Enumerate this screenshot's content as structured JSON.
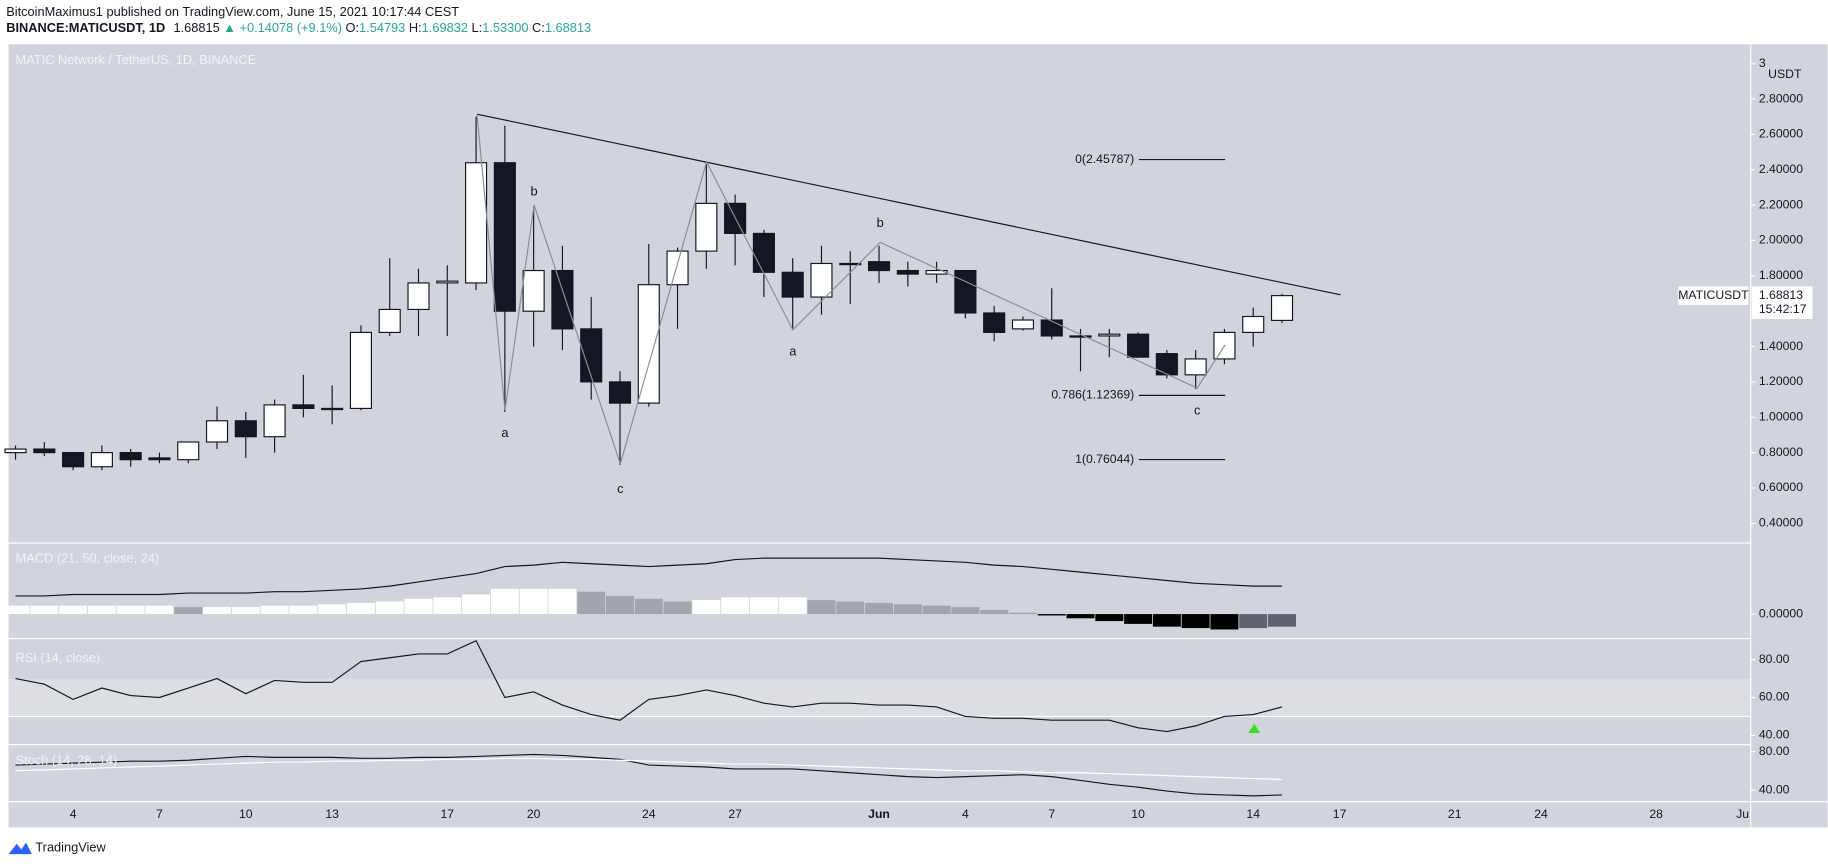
{
  "header": {
    "line1": "BitcoinMaximus1 published on TradingView.com, June 15, 2021 10:17:44 CEST",
    "symbol": "BINANCE:MATICUSDT, 1D",
    "last": "1.68815",
    "change": "+0.14078 (+9.1%)",
    "ohlc": [
      {
        "label": "O:",
        "value": "1.54793"
      },
      {
        "label": "H:",
        "value": "1.69832"
      },
      {
        "label": "L:",
        "value": "1.53300"
      },
      {
        "label": "C:",
        "value": "1.68813"
      }
    ]
  },
  "footer": {
    "brand": "TradingView"
  },
  "chart_data": [
    {
      "type": "candlestick",
      "title": "MATIC Network / TetherUS, 1D, BINANCE",
      "categories": [
        null,
        null,
        "4",
        null,
        null,
        "7",
        null,
        null,
        "10",
        null,
        null,
        "13",
        null,
        null,
        null,
        "17",
        null,
        null,
        "20",
        null,
        null,
        null,
        "24",
        null,
        null,
        "27",
        null,
        null,
        null,
        null,
        "Jun",
        null,
        null,
        "4",
        null,
        null,
        "7",
        null,
        null,
        "10",
        null,
        null,
        null,
        "14",
        null,
        null,
        "17",
        null,
        null,
        null,
        "21",
        null,
        null,
        "24",
        null,
        null,
        null,
        "28",
        null,
        null,
        "Ju"
      ],
      "series": {
        "open": [
          0.8,
          0.82,
          0.8,
          0.72,
          0.8,
          0.77,
          0.76,
          0.86,
          0.98,
          0.89,
          1.07,
          1.05,
          1.05,
          1.48,
          1.61,
          1.76,
          1.76,
          2.44,
          1.6,
          1.83,
          1.5,
          1.2,
          1.08,
          1.75,
          1.94,
          2.21,
          2.04,
          1.82,
          1.68,
          1.87,
          1.88,
          1.83,
          1.81,
          1.83,
          1.59,
          1.5,
          1.55,
          1.46,
          1.46,
          1.47,
          1.36,
          1.24,
          1.33,
          1.48,
          1.54793,
          null,
          null,
          null,
          null,
          null,
          null,
          null,
          null,
          null,
          null,
          null,
          null,
          null,
          null,
          null,
          null
        ],
        "high": [
          0.84,
          0.86,
          0.8,
          0.84,
          0.82,
          0.8,
          0.86,
          1.06,
          1.03,
          1.1,
          1.24,
          1.18,
          1.52,
          1.9,
          1.84,
          1.86,
          2.7,
          2.65,
          2.19,
          1.97,
          1.68,
          1.26,
          1.98,
          1.96,
          2.44,
          2.26,
          2.06,
          1.9,
          1.97,
          1.94,
          1.97,
          1.88,
          1.88,
          1.83,
          1.63,
          1.57,
          1.73,
          1.5,
          1.5,
          1.48,
          1.38,
          1.38,
          1.5,
          1.62,
          1.69832,
          null,
          null,
          null,
          null,
          null,
          null,
          null,
          null,
          null,
          null,
          null,
          null,
          null,
          null,
          null,
          null
        ],
        "low": [
          0.76,
          0.78,
          0.7,
          0.7,
          0.72,
          0.74,
          0.74,
          0.82,
          0.77,
          0.8,
          1.0,
          0.96,
          1.04,
          1.46,
          1.46,
          1.46,
          1.72,
          1.03,
          1.4,
          1.38,
          1.1,
          0.73,
          1.06,
          1.5,
          1.84,
          1.86,
          1.68,
          1.5,
          1.58,
          1.64,
          1.76,
          1.74,
          1.76,
          1.56,
          1.43,
          1.49,
          1.44,
          1.26,
          1.34,
          1.34,
          1.22,
          1.16,
          1.3,
          1.4,
          1.533,
          null,
          null,
          null,
          null,
          null,
          null,
          null,
          null,
          null,
          null,
          null,
          null,
          null,
          null,
          null,
          null
        ],
        "close": [
          0.82,
          0.8,
          0.72,
          0.8,
          0.76,
          0.76,
          0.86,
          0.98,
          0.89,
          1.07,
          1.05,
          1.05,
          1.48,
          1.61,
          1.76,
          1.77,
          2.44,
          1.6,
          1.83,
          1.5,
          1.2,
          1.08,
          1.75,
          1.94,
          2.21,
          2.04,
          1.82,
          1.68,
          1.87,
          1.87,
          1.83,
          1.81,
          1.83,
          1.59,
          1.48,
          1.55,
          1.46,
          1.46,
          1.47,
          1.34,
          1.24,
          1.33,
          1.48,
          1.57,
          1.68813,
          null,
          null,
          null,
          null,
          null,
          null,
          null,
          null,
          null,
          null,
          null,
          null,
          null,
          null,
          null,
          null
        ]
      },
      "up_color": "#ffffff",
      "down_color": "#131722",
      "ylim": [
        0.295,
        3.11
      ],
      "y_unit": "USDT",
      "yticks": [
        3,
        {
          "value": 2.8,
          "label": "2.80000"
        },
        {
          "value": 2.6,
          "label": "2.60000"
        },
        {
          "value": 2.4,
          "label": "2.40000"
        },
        {
          "value": 2.2,
          "label": "2.20000"
        },
        {
          "value": 2.0,
          "label": "2.00000"
        },
        {
          "value": 1.8,
          "label": "1.80000"
        },
        {
          "value": 1.4,
          "label": "1.40000"
        },
        {
          "value": 1.2,
          "label": "1.20000"
        },
        {
          "value": 1.0,
          "label": "1.00000"
        },
        {
          "value": 0.8,
          "label": "0.80000"
        },
        {
          "value": 0.6,
          "label": "0.60000"
        },
        {
          "value": 0.4,
          "label": "0.40000"
        }
      ],
      "fib_levels": [
        {
          "label": "0(2.45787)",
          "value": 2.45787
        },
        {
          "label": "0.786(1.12369)",
          "value": 1.12369
        },
        {
          "label": "1(0.76044)",
          "value": 0.76044
        }
      ],
      "wave_labels": [
        "b",
        "a",
        "c",
        "a",
        "b",
        "c"
      ],
      "last_price": {
        "symbol": "MATICUSDT",
        "value": 1.68813,
        "countdown": "15:42:17"
      }
    },
    {
      "type": "macd",
      "title": "MACD (21, 50, close, 24)",
      "series": [
        {
          "name": "MACD",
          "color": "#131722",
          "values": [
            0.013,
            0.013,
            0.014,
            0.014,
            0.014,
            0.014,
            0.015,
            0.015,
            0.015,
            0.016,
            0.016,
            0.017,
            0.018,
            0.02,
            0.023,
            0.026,
            0.029,
            0.034,
            0.035,
            0.037,
            0.036,
            0.035,
            0.034,
            0.035,
            0.036,
            0.039,
            0.04,
            0.04,
            0.04,
            0.04,
            0.04,
            0.039,
            0.038,
            0.037,
            0.035,
            0.034,
            0.032,
            0.03,
            0.028,
            0.026,
            0.024,
            0.022,
            0.021,
            0.02,
            0.02,
            null,
            null,
            null,
            null,
            null,
            null,
            null,
            null,
            null,
            null,
            null,
            null,
            null,
            null,
            null,
            null
          ]
        }
      ],
      "histogram": [
        0.006,
        0.006,
        0.006,
        0.006,
        0.006,
        0.006,
        0.005,
        0.005,
        0.005,
        0.006,
        0.006,
        0.007,
        0.008,
        0.009,
        0.011,
        0.012,
        0.014,
        0.018,
        0.018,
        0.018,
        0.016,
        0.013,
        0.011,
        0.009,
        0.01,
        0.012,
        0.012,
        0.012,
        0.01,
        0.009,
        0.008,
        0.007,
        0.006,
        0.005,
        0.003,
        0.001,
        -0.001,
        -0.003,
        -0.005,
        -0.007,
        -0.009,
        -0.01,
        -0.011,
        -0.01,
        -0.009,
        null,
        null,
        null,
        null,
        null,
        null,
        null,
        null,
        null,
        null,
        null,
        null,
        null,
        null,
        null,
        null
      ],
      "histogram_colors": {
        "up": "#ffffff",
        "down": "#a3a5ad",
        "neg_down": "#000000",
        "neg_up": "#60636d"
      },
      "ylim": [
        -0.0167,
        0.0508
      ],
      "yticks": [
        {
          "value": 0,
          "label": "0.00000"
        }
      ]
    },
    {
      "type": "rsi",
      "title": "RSI (14, close)",
      "series": [
        {
          "name": "RSI",
          "color": "#131722",
          "values": [
            70,
            67,
            59,
            65,
            61,
            60,
            65,
            70,
            62,
            69,
            68,
            68,
            79,
            81,
            83,
            83,
            90,
            60,
            63,
            56,
            51,
            48,
            59,
            61,
            64,
            61,
            57,
            55,
            57,
            57,
            56,
            56,
            55,
            50,
            49,
            49,
            48,
            48,
            48,
            44,
            42,
            45,
            50,
            51,
            55,
            null,
            null,
            null,
            null,
            null,
            null,
            null,
            null,
            null,
            null,
            null,
            null,
            null,
            null,
            null,
            null
          ]
        }
      ],
      "band": {
        "from": 50,
        "to": 70,
        "color": "#dcdee4"
      },
      "midline": 50,
      "ylim": [
        35.7,
        90.5
      ],
      "yticks": [
        {
          "value": 80,
          "label": "80.00"
        },
        {
          "value": 60,
          "label": "60.00"
        },
        {
          "value": 40,
          "label": "40.00"
        }
      ]
    },
    {
      "type": "stoch",
      "title": "Stoch (14, 28, 14)",
      "series": [
        {
          "name": "%K",
          "color": "#131722",
          "values": [
            66,
            67,
            68,
            69,
            70,
            70,
            71,
            73,
            75,
            74,
            74,
            74,
            73,
            73,
            74,
            74,
            75,
            76,
            77,
            76,
            74,
            72,
            66,
            65,
            64,
            62,
            62,
            62,
            60,
            58,
            56,
            54,
            53,
            54,
            55,
            56,
            54,
            50,
            46,
            43,
            39,
            36,
            35,
            34,
            35,
            null,
            null,
            null,
            null,
            null,
            null,
            null,
            null,
            null,
            null,
            null,
            null,
            null,
            null,
            null,
            null
          ]
        },
        {
          "name": "%D",
          "color": "#ffffff",
          "values": [
            60,
            61,
            62,
            63,
            64,
            65,
            66,
            67,
            68,
            69,
            69,
            70,
            70,
            71,
            71,
            72,
            72,
            73,
            73,
            72,
            72,
            71,
            70,
            69,
            68,
            67,
            67,
            66,
            65,
            64,
            63,
            62,
            61,
            60,
            60,
            59,
            58,
            58,
            57,
            56,
            55,
            54,
            53,
            52,
            51,
            null,
            null,
            null,
            null,
            null,
            null,
            null,
            null,
            null,
            null,
            null,
            null,
            null,
            null,
            null,
            null
          ]
        }
      ],
      "ylim": [
        27.9,
        86
      ],
      "yticks": [
        {
          "value": 80,
          "label": "80.00"
        },
        {
          "value": 40,
          "label": "40.00"
        }
      ]
    }
  ]
}
